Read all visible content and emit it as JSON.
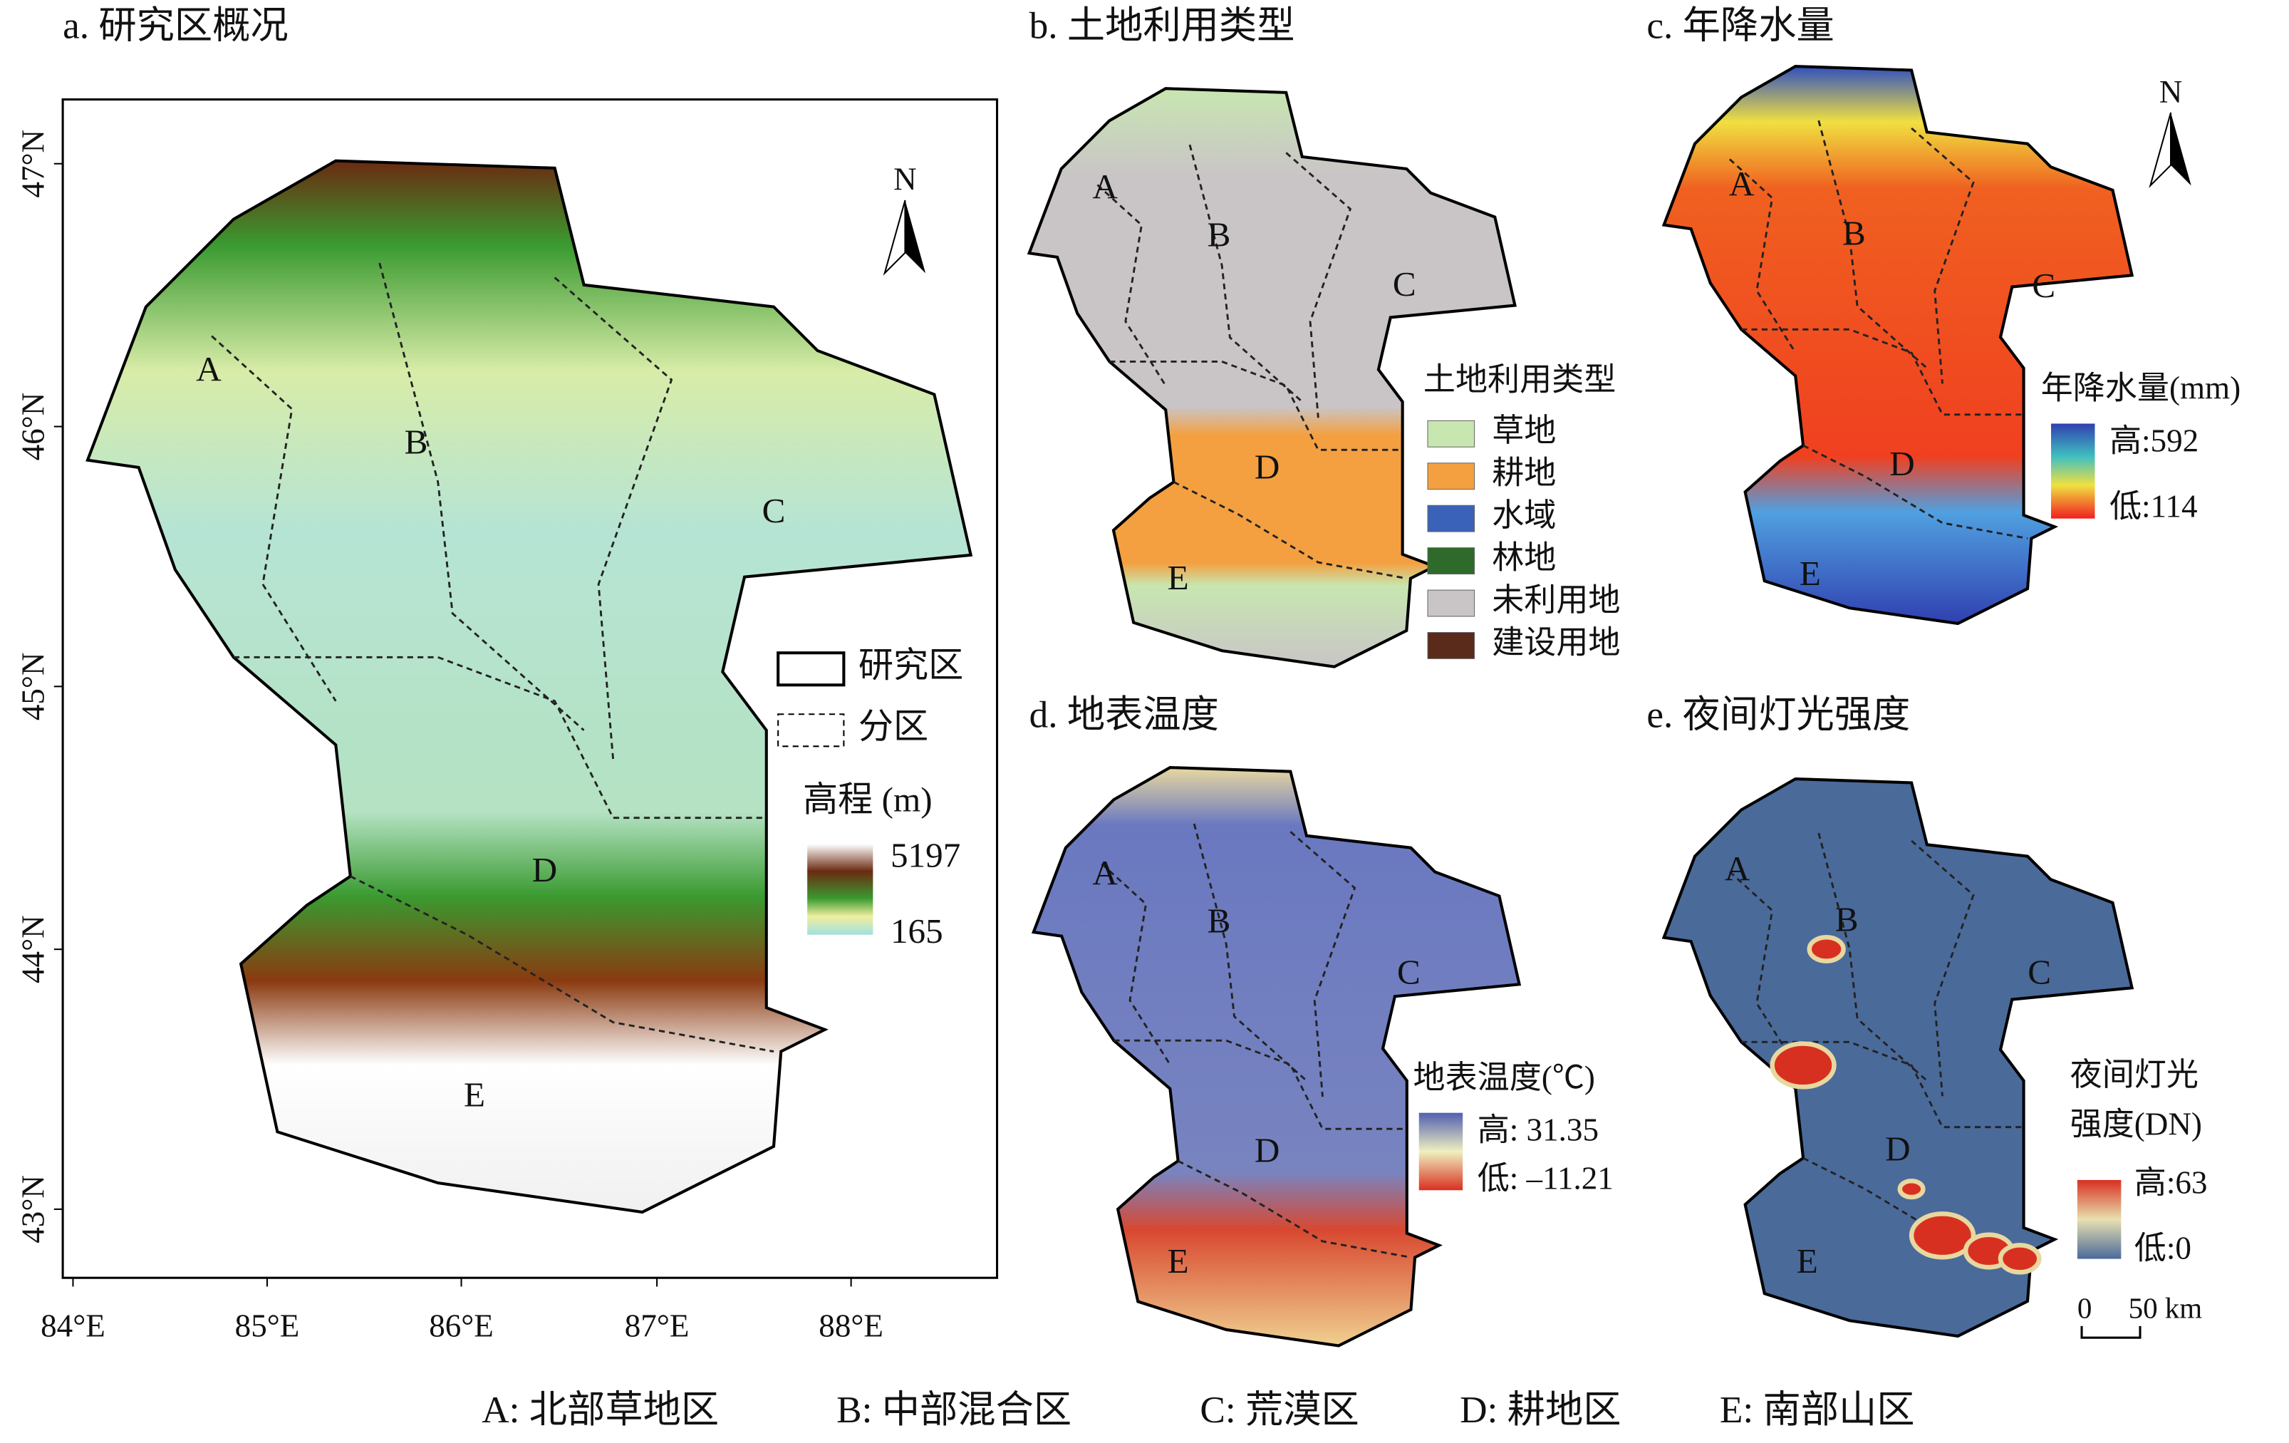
{
  "panels": [
    {
      "title": "a. 研究区概况",
      "regions": [
        "A",
        "B",
        "C",
        "D",
        "E"
      ],
      "legend": {
        "boundary": "研究区",
        "zones": "分区",
        "bar_title": "高程 (m)",
        "high": "5197",
        "low": "165"
      },
      "north": "N",
      "lat_labels": [
        "47°N",
        "46°N",
        "45°N",
        "44°N",
        "43°N"
      ],
      "lon_labels": [
        "84°E",
        "85°E",
        "86°E",
        "87°E",
        "88°E"
      ]
    },
    {
      "title": "b. 土地利用类型",
      "regions": [
        "A",
        "B",
        "C",
        "D",
        "E"
      ],
      "legend": {
        "title": "土地利用类型",
        "items": [
          {
            "name": "草地",
            "color": "#c8e6b0"
          },
          {
            "name": "耕地",
            "color": "#f4a040"
          },
          {
            "name": "水域",
            "color": "#3a62b8"
          },
          {
            "name": "林地",
            "color": "#2e6b2a"
          },
          {
            "name": "未利用地",
            "color": "#c9c5c7"
          },
          {
            "name": "建设用地",
            "color": "#5a2a1a"
          }
        ]
      }
    },
    {
      "title": "c. 年降水量",
      "regions": [
        "A",
        "B",
        "C",
        "D",
        "E"
      ],
      "north": "N",
      "legend": {
        "bar_title": "年降水量(mm)",
        "high": "高:592",
        "low": "低:114"
      }
    },
    {
      "title": "d. 地表温度",
      "regions": [
        "A",
        "B",
        "C",
        "D",
        "E"
      ],
      "legend": {
        "bar_title": "地表温度(℃)",
        "high": "高: 31.35",
        "low": "低: –11.21"
      }
    },
    {
      "title": "e. 夜间灯光强度",
      "regions": [
        "A",
        "B",
        "C",
        "D",
        "E"
      ],
      "legend": {
        "bar_title": [
          "夜间灯光",
          "强度(DN)"
        ],
        "high": "高:63",
        "low": "低:0",
        "scale": [
          "0",
          "50 km"
        ]
      }
    }
  ],
  "caption": [
    "A: 北部草地区",
    "B: 中部混合区",
    "C: 荒漠区",
    "D: 耕地区",
    "E: 南部山区"
  ]
}
